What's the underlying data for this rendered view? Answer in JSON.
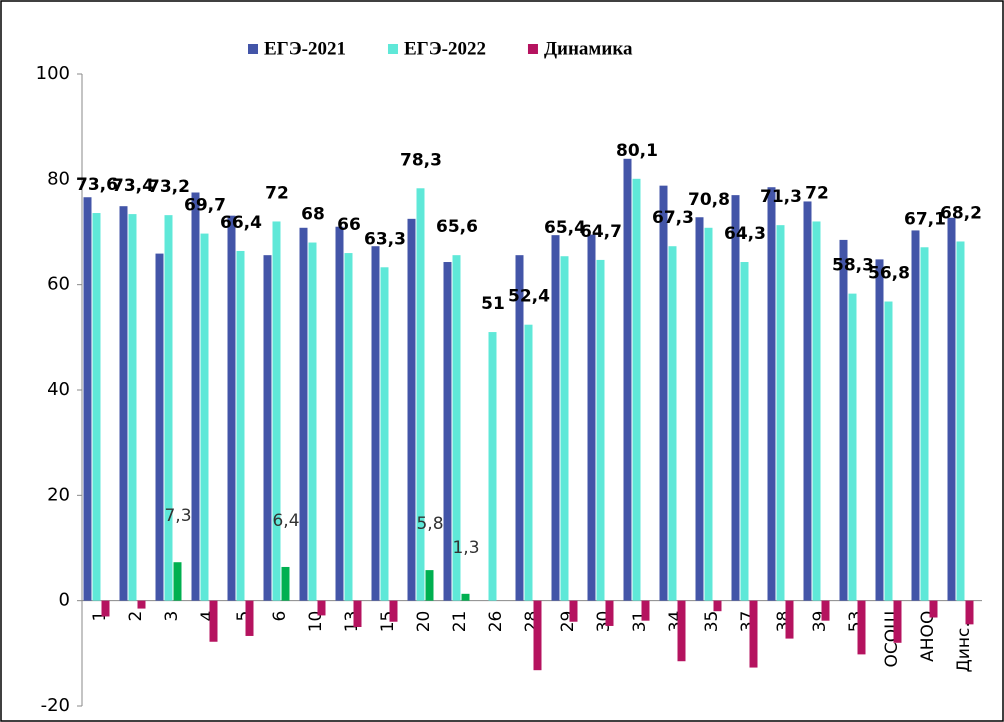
{
  "chart_data": {
    "type": "bar",
    "categories": [
      "1",
      "2",
      "3",
      "4",
      "5",
      "6",
      "10",
      "13",
      "15",
      "20",
      "21",
      "26",
      "28",
      "29",
      "30",
      "31",
      "34",
      "35",
      "37",
      "38",
      "39",
      "53",
      "ОСОШ",
      "АНОО",
      "Динс…"
    ],
    "series": [
      {
        "name": "ЕГЭ-2021",
        "color": "#4355a8",
        "values": [
          76.6,
          74.9,
          65.9,
          77.5,
          73.1,
          65.6,
          70.8,
          71,
          67.3,
          72.5,
          64.3,
          null,
          65.6,
          69.4,
          69.5,
          83.9,
          78.8,
          72.8,
          77,
          78.5,
          75.8,
          68.5,
          64.8,
          70.3,
          72.7
        ]
      },
      {
        "name": "ЕГЭ-2022",
        "color": "#5fe8d8",
        "values": [
          73.6,
          73.4,
          73.2,
          69.7,
          66.4,
          72,
          68,
          66,
          63.3,
          78.3,
          65.6,
          51,
          52.4,
          65.4,
          64.7,
          80.1,
          67.3,
          70.8,
          64.3,
          71.3,
          72,
          58.3,
          56.8,
          67.1,
          68.2
        ],
        "value_labels": [
          "73,6",
          "73,4",
          "73,2",
          "69,7",
          "66,4",
          "72",
          "68",
          "66",
          "63,3",
          "78,3",
          "65,6",
          "51",
          "52,4",
          "65,4",
          "64,7",
          "80,1",
          "67,3",
          "70,8",
          "64,3",
          "71,3",
          "72",
          "58,3",
          "56,8",
          "67,1",
          "68,2"
        ]
      },
      {
        "name": "Динамика",
        "color": "#b5135f",
        "positive_color": "#00b050",
        "values": [
          -3,
          -1.5,
          7.3,
          -7.8,
          -6.7,
          6.4,
          -2.8,
          -5,
          -4,
          5.8,
          1.3,
          null,
          -13.2,
          -4,
          -4.8,
          -3.8,
          -11.5,
          -2,
          -12.7,
          -7.2,
          -3.8,
          -10.2,
          -8,
          -3.2,
          -4.5
        ],
        "value_labels": [
          null,
          null,
          "7,3",
          null,
          null,
          "6,4",
          null,
          null,
          null,
          "5,8",
          "1,3",
          null,
          null,
          null,
          null,
          null,
          null,
          null,
          null,
          null,
          null,
          null,
          null,
          null,
          null
        ]
      }
    ],
    "ylim": [
      -20,
      100
    ],
    "yticks": [
      -20,
      0,
      20,
      40,
      60,
      80,
      100
    ],
    "legend": "top"
  }
}
